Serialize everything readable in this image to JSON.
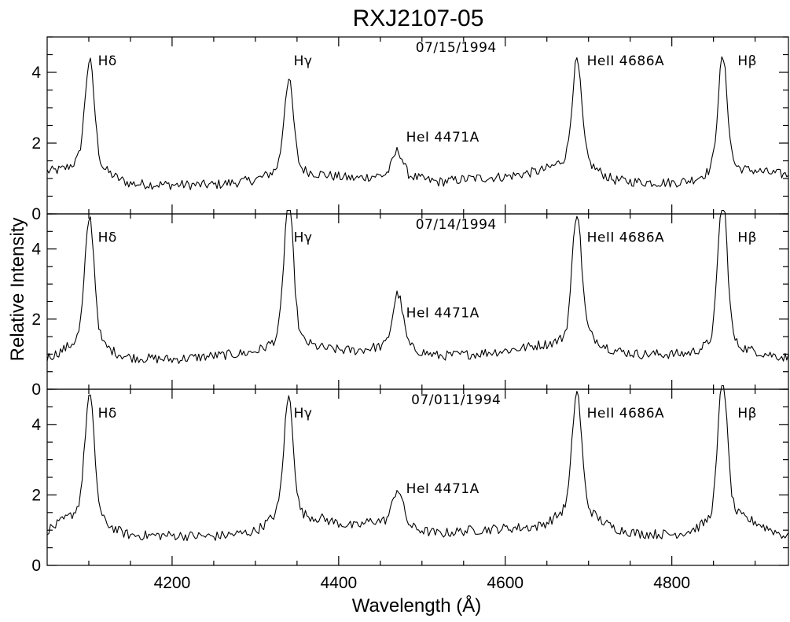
{
  "chart_data": {
    "type": "line",
    "title": "RXJ2107-05",
    "xlabel": "Wavelength (Å)",
    "ylabel": "Relative Intensity",
    "xlim": [
      4050,
      4940
    ],
    "ylim": [
      0,
      5
    ],
    "x_ticks": [
      4200,
      4400,
      4600,
      4800
    ],
    "y_ticks": [
      0,
      2,
      4
    ],
    "grid": false,
    "panels": [
      {
        "date": "07/15/1994",
        "continuum_x": [
          4050,
          4070,
          4090,
          4120,
          4150,
          4200,
          4250,
          4300,
          4330,
          4350,
          4380,
          4420,
          4440,
          4490,
          4520,
          4560,
          4600,
          4640,
          4670,
          4700,
          4730,
          4760,
          4800,
          4840,
          4870,
          4900,
          4940
        ],
        "continuum_y": [
          1.2,
          1.2,
          1.25,
          1.05,
          0.85,
          0.82,
          0.82,
          0.95,
          1.05,
          1.05,
          1.1,
          1.0,
          1.05,
          1.0,
          0.9,
          1.0,
          1.05,
          1.2,
          1.3,
          1.2,
          0.95,
          0.9,
          0.88,
          0.95,
          1.05,
          1.2,
          1.1
        ],
        "lines": [
          {
            "x": 4101,
            "peak": 4.0
          },
          {
            "x": 4340,
            "peak": 3.5
          },
          {
            "x": 4471,
            "peak": 1.7
          },
          {
            "x": 4686,
            "peak": 4.0
          },
          {
            "x": 4861,
            "peak": 4.05
          }
        ]
      },
      {
        "date": "07/14/1994",
        "continuum_x": [
          4050,
          4070,
          4090,
          4120,
          4150,
          4200,
          4250,
          4300,
          4330,
          4350,
          4380,
          4420,
          4440,
          4490,
          4520,
          4560,
          4600,
          4640,
          4670,
          4700,
          4730,
          4760,
          4800,
          4840,
          4870,
          4900,
          4940
        ],
        "continuum_y": [
          0.9,
          1.05,
          1.15,
          1.0,
          0.9,
          0.85,
          0.95,
          1.05,
          1.1,
          1.1,
          1.15,
          1.1,
          1.15,
          1.05,
          0.95,
          1.0,
          1.1,
          1.25,
          1.2,
          1.3,
          1.1,
          1.0,
          1.0,
          1.0,
          0.95,
          1.05,
          0.9
        ],
        "lines": [
          {
            "x": 4101,
            "peak": 4.5
          },
          {
            "x": 4340,
            "peak": 4.95
          },
          {
            "x": 4471,
            "peak": 2.55
          },
          {
            "x": 4686,
            "peak": 4.65
          },
          {
            "x": 4861,
            "peak": 5.05
          }
        ]
      },
      {
        "date": "07/011/1994",
        "continuum_x": [
          4050,
          4070,
          4090,
          4120,
          4150,
          4200,
          4250,
          4300,
          4330,
          4350,
          4380,
          4420,
          4440,
          4490,
          4520,
          4560,
          4600,
          4640,
          4670,
          4700,
          4730,
          4760,
          4800,
          4840,
          4870,
          4900,
          4940
        ],
        "continuum_y": [
          1.0,
          1.2,
          1.3,
          1.0,
          0.85,
          0.85,
          0.82,
          0.95,
          1.25,
          1.2,
          1.3,
          1.1,
          1.25,
          1.0,
          0.9,
          1.0,
          1.05,
          1.1,
          1.3,
          1.3,
          1.05,
          0.9,
          0.88,
          1.0,
          1.2,
          1.2,
          0.8
        ],
        "lines": [
          {
            "x": 4101,
            "peak": 4.45
          },
          {
            "x": 4340,
            "peak": 4.4
          },
          {
            "x": 4471,
            "peak": 2.05
          },
          {
            "x": 4686,
            "peak": 4.55
          },
          {
            "x": 4861,
            "peak": 4.85
          }
        ]
      }
    ],
    "line_labels": {
      "hdelta": "Hδ",
      "hgamma": "Hγ",
      "hei": "HeI 4471A",
      "heii": "HeII 4686A",
      "hbeta": "Hβ"
    }
  }
}
